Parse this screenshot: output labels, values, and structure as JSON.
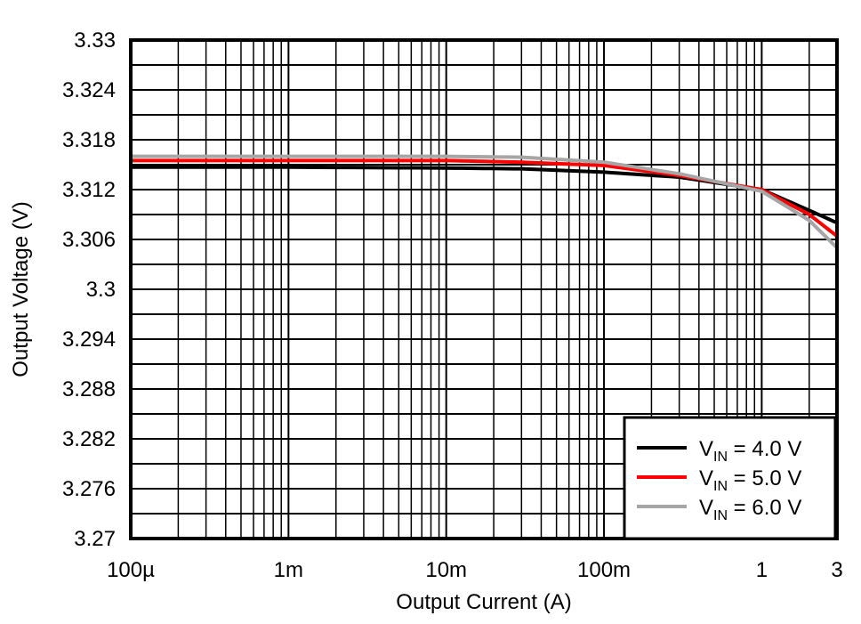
{
  "chart_data": {
    "type": "line",
    "xlabel": "Output Current (A)",
    "ylabel": "Output Voltage (V)",
    "xscale": "log",
    "xlim": [
      0.0001,
      3
    ],
    "ylim": [
      3.27,
      3.33
    ],
    "grid": true,
    "x_ticks": [
      {
        "v": 0.0001,
        "label": "100µ"
      },
      {
        "v": 0.001,
        "label": "1m"
      },
      {
        "v": 0.01,
        "label": "10m"
      },
      {
        "v": 0.1,
        "label": "100m"
      },
      {
        "v": 1,
        "label": "1"
      },
      {
        "v": 3,
        "label": "3"
      }
    ],
    "y_ticks": [
      "3.27",
      "3.276",
      "3.282",
      "3.288",
      "3.294",
      "3.3",
      "3.306",
      "3.312",
      "3.318",
      "3.324",
      "3.33"
    ],
    "legend_position": "bottom-right",
    "series": [
      {
        "name": "V_IN = 4.0 V",
        "name_main": "V",
        "name_sub": "IN",
        "name_rest": " = 4.0 V",
        "color": "#000000",
        "x": [
          0.0001,
          0.001,
          0.01,
          0.03,
          0.1,
          0.3,
          1,
          2,
          3
        ],
        "y": [
          3.3147,
          3.3147,
          3.3146,
          3.3145,
          3.3141,
          3.3135,
          3.312,
          3.3095,
          3.308
        ]
      },
      {
        "name": "V_IN = 5.0 V",
        "name_main": "V",
        "name_sub": "IN",
        "name_rest": " = 5.0 V",
        "color": "#ff0000",
        "x": [
          0.0001,
          0.001,
          0.01,
          0.03,
          0.1,
          0.3,
          1,
          2,
          3
        ],
        "y": [
          3.3155,
          3.3155,
          3.3155,
          3.3153,
          3.3149,
          3.3137,
          3.312,
          3.309,
          3.3064
        ]
      },
      {
        "name": "V_IN = 6.0 V",
        "name_main": "V",
        "name_sub": "IN",
        "name_rest": " = 6.0 V",
        "color": "#a6a6a6",
        "x": [
          0.0001,
          0.001,
          0.01,
          0.03,
          0.1,
          0.3,
          1,
          2,
          3
        ],
        "y": [
          3.316,
          3.316,
          3.316,
          3.3159,
          3.3153,
          3.3139,
          3.3118,
          3.3083,
          3.305
        ]
      }
    ]
  }
}
